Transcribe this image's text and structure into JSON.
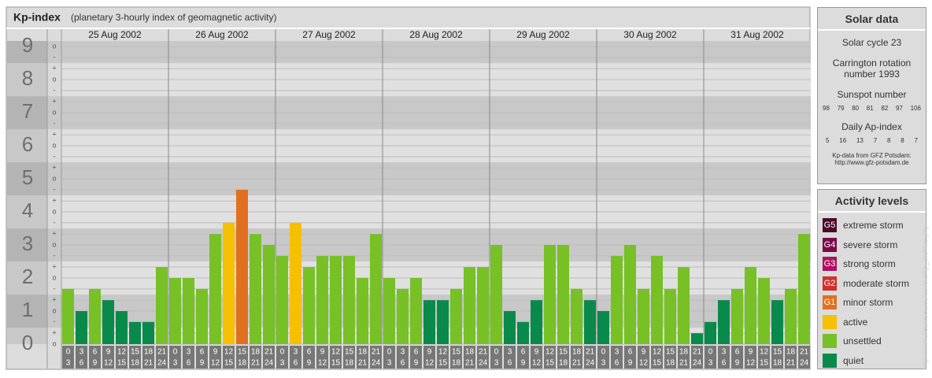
{
  "chart_data": {
    "type": "bar",
    "title": "Kp-index",
    "subtitle": "(planetary 3-hourly index of geomagnetic activity)",
    "days": [
      "25 Aug 2002",
      "26 Aug 2002",
      "27 Aug 2002",
      "28 Aug 2002",
      "29 Aug 2002",
      "30 Aug 2002",
      "31 Aug 2002"
    ],
    "hours": [
      [
        0,
        3
      ],
      [
        3,
        6
      ],
      [
        6,
        9
      ],
      [
        9,
        12
      ],
      [
        12,
        15
      ],
      [
        15,
        18
      ],
      [
        18,
        21
      ],
      [
        21,
        24
      ]
    ],
    "values": [
      1.67,
      1,
      1.67,
      1.33,
      1,
      0.67,
      0.67,
      2.33,
      2,
      2,
      1.67,
      3.33,
      3.67,
      4.67,
      3.33,
      3,
      2.67,
      3.67,
      2.33,
      2.67,
      2.67,
      2.67,
      2,
      3.33,
      2,
      1.67,
      2,
      1.33,
      1.33,
      1.67,
      2.33,
      2.33,
      3,
      1,
      0.67,
      1.33,
      3,
      3,
      1.67,
      1.33,
      1,
      2.67,
      3,
      1.67,
      2.67,
      1.67,
      2.33,
      0.33,
      0.67,
      1.33,
      1.67,
      2.33,
      2,
      1.33,
      1.67,
      3.33
    ],
    "colors": [
      "#77c026",
      "#0a8a4a",
      "#77c026",
      "#0a8a4a",
      "#0a8a4a",
      "#0a8a4a",
      "#0a8a4a",
      "#77c026",
      "#77c026",
      "#77c026",
      "#77c026",
      "#77c026",
      "#f5c000",
      "#e07020",
      "#77c026",
      "#77c026",
      "#77c026",
      "#f5c000",
      "#77c026",
      "#77c026",
      "#77c026",
      "#77c026",
      "#77c026",
      "#77c026",
      "#77c026",
      "#77c026",
      "#77c026",
      "#0a8a4a",
      "#0a8a4a",
      "#77c026",
      "#77c026",
      "#77c026",
      "#77c026",
      "#0a8a4a",
      "#0a8a4a",
      "#0a8a4a",
      "#77c026",
      "#77c026",
      "#77c026",
      "#0a8a4a",
      "#0a8a4a",
      "#77c026",
      "#77c026",
      "#77c026",
      "#77c026",
      "#77c026",
      "#77c026",
      "#0a8a4a",
      "#0a8a4a",
      "#0a8a4a",
      "#77c026",
      "#77c026",
      "#77c026",
      "#0a8a4a",
      "#77c026",
      "#77c026"
    ],
    "ylim": [
      0,
      9.17
    ],
    "yticks": [
      0,
      1,
      2,
      3,
      4,
      5,
      6,
      7,
      8,
      9
    ],
    "minor_yticks": [
      {
        "value": 0,
        "label": "o"
      },
      {
        "value": 0.33,
        "label": "+"
      },
      {
        "value": 0.67,
        "label": "-"
      },
      {
        "value": 1,
        "label": "o"
      },
      {
        "value": 1.33,
        "label": "+"
      },
      {
        "value": 1.67,
        "label": "-"
      },
      {
        "value": 2,
        "label": "o"
      },
      {
        "value": 2.33,
        "label": "+"
      },
      {
        "value": 2.67,
        "label": "-"
      },
      {
        "value": 3,
        "label": "o"
      },
      {
        "value": 3.33,
        "label": "+"
      },
      {
        "value": 3.67,
        "label": "-"
      },
      {
        "value": 4,
        "label": "o"
      },
      {
        "value": 4.33,
        "label": "+"
      },
      {
        "value": 4.67,
        "label": "-"
      },
      {
        "value": 5,
        "label": "o"
      },
      {
        "value": 5.33,
        "label": "+"
      },
      {
        "value": 5.67,
        "label": "-"
      },
      {
        "value": 6,
        "label": "o"
      },
      {
        "value": 6.33,
        "label": "+"
      },
      {
        "value": 6.67,
        "label": "-"
      },
      {
        "value": 7,
        "label": "o"
      },
      {
        "value": 7.33,
        "label": "+"
      },
      {
        "value": 7.67,
        "label": "-"
      },
      {
        "value": 8,
        "label": "o"
      },
      {
        "value": 8.33,
        "label": "+"
      },
      {
        "value": 8.67,
        "label": "-"
      },
      {
        "value": 9,
        "label": "o"
      }
    ],
    "grid": true
  },
  "solar_data": {
    "title": "Solar data",
    "cycle": "Solar cycle 23",
    "carrington": "Carrington rotation number 1993",
    "sunspot_label": "Sunspot number",
    "sunspot": [
      98,
      79,
      80,
      81,
      82,
      97,
      106
    ],
    "ap_label": "Daily Ap-index",
    "ap": [
      5,
      16,
      13,
      7,
      8,
      8,
      7
    ],
    "source": "Kp-data from GFZ Potsdam:",
    "source_url": "http://www.gfz-potsdam.de"
  },
  "activity": {
    "title": "Activity levels",
    "levels": [
      {
        "code": "G5",
        "label": "extreme storm",
        "color": "#4a0a2a"
      },
      {
        "code": "G4",
        "label": "severe storm",
        "color": "#7a0a4a"
      },
      {
        "code": "G3",
        "label": "strong storm",
        "color": "#b0105f"
      },
      {
        "code": "G2",
        "label": "moderate storm",
        "color": "#d0302a"
      },
      {
        "code": "G1",
        "label": "minor storm",
        "color": "#e07020"
      },
      {
        "label": "active",
        "color": "#f5c000"
      },
      {
        "label": "unsettled",
        "color": "#77c026"
      },
      {
        "label": "quiet",
        "color": "#0a8a4a"
      }
    ]
  },
  "footer_url": "http://www.fieuwseu.eu/aurora/kp_archive.php"
}
